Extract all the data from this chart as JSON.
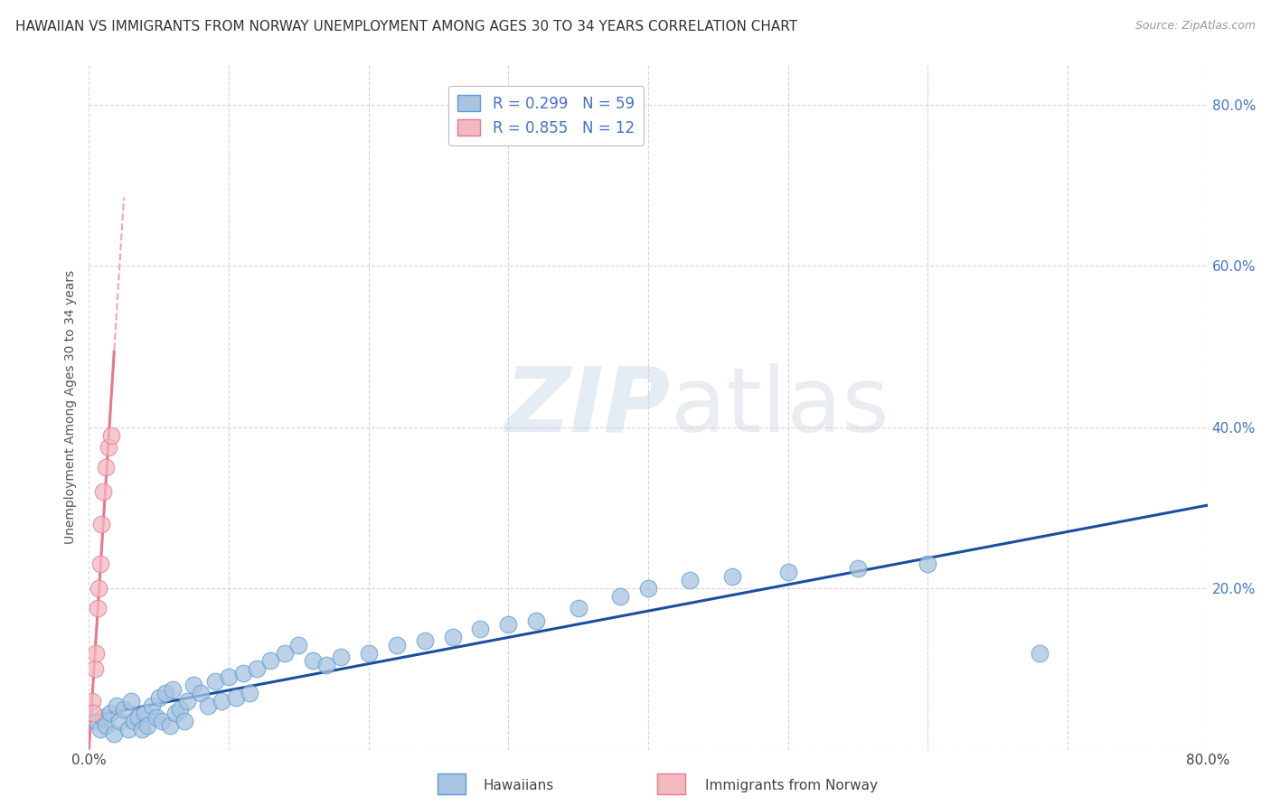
{
  "title": "HAWAIIAN VS IMMIGRANTS FROM NORWAY UNEMPLOYMENT AMONG AGES 30 TO 34 YEARS CORRELATION CHART",
  "source": "Source: ZipAtlas.com",
  "ylabel": "Unemployment Among Ages 30 to 34 years",
  "xmin": 0.0,
  "xmax": 0.8,
  "ymin": 0.0,
  "ymax": 0.85,
  "hawaiians_x": [
    0.005,
    0.008,
    0.01,
    0.012,
    0.015,
    0.018,
    0.02,
    0.022,
    0.025,
    0.028,
    0.03,
    0.032,
    0.035,
    0.038,
    0.04,
    0.042,
    0.045,
    0.048,
    0.05,
    0.052,
    0.055,
    0.058,
    0.06,
    0.062,
    0.065,
    0.068,
    0.07,
    0.075,
    0.08,
    0.085,
    0.09,
    0.095,
    0.1,
    0.105,
    0.11,
    0.115,
    0.12,
    0.13,
    0.14,
    0.15,
    0.16,
    0.17,
    0.18,
    0.2,
    0.22,
    0.24,
    0.26,
    0.28,
    0.3,
    0.32,
    0.35,
    0.38,
    0.4,
    0.43,
    0.46,
    0.5,
    0.55,
    0.6,
    0.68
  ],
  "hawaiians_y": [
    0.035,
    0.025,
    0.04,
    0.03,
    0.045,
    0.02,
    0.055,
    0.035,
    0.05,
    0.025,
    0.06,
    0.035,
    0.04,
    0.025,
    0.045,
    0.03,
    0.055,
    0.04,
    0.065,
    0.035,
    0.07,
    0.03,
    0.075,
    0.045,
    0.05,
    0.035,
    0.06,
    0.08,
    0.07,
    0.055,
    0.085,
    0.06,
    0.09,
    0.065,
    0.095,
    0.07,
    0.1,
    0.11,
    0.12,
    0.13,
    0.11,
    0.105,
    0.115,
    0.12,
    0.13,
    0.135,
    0.14,
    0.15,
    0.155,
    0.16,
    0.175,
    0.19,
    0.2,
    0.21,
    0.215,
    0.22,
    0.225,
    0.23,
    0.12
  ],
  "norway_x": [
    0.002,
    0.003,
    0.004,
    0.005,
    0.006,
    0.007,
    0.008,
    0.009,
    0.01,
    0.012,
    0.014,
    0.016
  ],
  "norway_y": [
    0.06,
    0.045,
    0.1,
    0.12,
    0.175,
    0.2,
    0.23,
    0.28,
    0.32,
    0.35,
    0.375,
    0.39
  ],
  "hawaii_color": "#a8c4e0",
  "hawaii_edge_color": "#5b9bd5",
  "norway_color": "#f4b8c1",
  "norway_edge_color": "#e8788a",
  "hawaii_line_color": "#1a4fa0",
  "norway_line_color": "#e8788a",
  "hawaii_R": 0.299,
  "hawaii_N": 59,
  "norway_R": 0.855,
  "norway_N": 12,
  "watermark_zip": "ZIP",
  "watermark_atlas": "atlas",
  "background_color": "#ffffff",
  "grid_color": "#cccccc",
  "title_fontsize": 11,
  "tick_color": "#4472c4",
  "legend_label_color": "#4472c4"
}
